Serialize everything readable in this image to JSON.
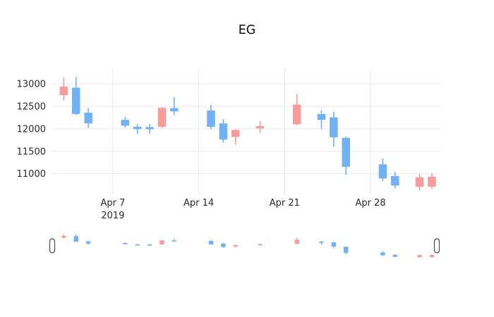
{
  "title": "EG",
  "chart_data": {
    "type": "candlestick",
    "title": "EG",
    "increasing_color": "#F89B9B",
    "decreasing_color": "#72B2F4",
    "grid_color": "#E9E9E9",
    "label_color": "#2A2A2A",
    "title_color": "#111111",
    "handle_border_color": "#4A4A4A",
    "legend": "none",
    "grid": "on",
    "x_range": [
      "2019-04-02T00:00:00Z",
      "2019-05-03T18:00:00Z"
    ],
    "y_range": [
      10525,
      13330
    ],
    "y_ticks": [
      11000,
      11500,
      12000,
      12500,
      13000
    ],
    "x_ticks": [
      {
        "date": "2019-04-07",
        "label": "Apr 7",
        "sublabel": "2019"
      },
      {
        "date": "2019-04-14",
        "label": "Apr 14",
        "sublabel": ""
      },
      {
        "date": "2019-04-21",
        "label": "Apr 21",
        "sublabel": ""
      },
      {
        "date": "2019-04-28",
        "label": "Apr 28",
        "sublabel": ""
      }
    ],
    "rangeslider": true,
    "slider_y_range": [
      10635,
      13150
    ],
    "ohlc": [
      {
        "date": "2019-04-03",
        "open": 12750,
        "high": 13140,
        "low": 12635,
        "close": 12940
      },
      {
        "date": "2019-04-04",
        "open": 12915,
        "high": 13150,
        "low": 12305,
        "close": 12330
      },
      {
        "date": "2019-04-05",
        "open": 12360,
        "high": 12460,
        "low": 12020,
        "close": 12120
      },
      {
        "date": "2019-04-08",
        "open": 12200,
        "high": 12270,
        "low": 12030,
        "close": 12070
      },
      {
        "date": "2019-04-09",
        "open": 12045,
        "high": 12110,
        "low": 11890,
        "close": 11995
      },
      {
        "date": "2019-04-10",
        "open": 12040,
        "high": 12110,
        "low": 11890,
        "close": 11990
      },
      {
        "date": "2019-04-11",
        "open": 12045,
        "high": 12480,
        "low": 12020,
        "close": 12465
      },
      {
        "date": "2019-04-12",
        "open": 12460,
        "high": 12705,
        "low": 12305,
        "close": 12390
      },
      {
        "date": "2019-04-15",
        "open": 12410,
        "high": 12530,
        "low": 11990,
        "close": 12045
      },
      {
        "date": "2019-04-16",
        "open": 12120,
        "high": 12215,
        "low": 11695,
        "close": 11760
      },
      {
        "date": "2019-04-17",
        "open": 11820,
        "high": 11990,
        "low": 11650,
        "close": 11975
      },
      {
        "date": "2019-04-19",
        "open": 12010,
        "high": 12175,
        "low": 11905,
        "close": 12060
      },
      {
        "date": "2019-04-22",
        "open": 12100,
        "high": 12775,
        "low": 12080,
        "close": 12540
      },
      {
        "date": "2019-04-24",
        "open": 12330,
        "high": 12410,
        "low": 11990,
        "close": 12200
      },
      {
        "date": "2019-04-25",
        "open": 12255,
        "high": 12385,
        "low": 11600,
        "close": 11810
      },
      {
        "date": "2019-04-26",
        "open": 11800,
        "high": 11830,
        "low": 10975,
        "close": 11155
      },
      {
        "date": "2019-04-29",
        "open": 11210,
        "high": 11340,
        "low": 10840,
        "close": 10895
      },
      {
        "date": "2019-04-30",
        "open": 10950,
        "high": 11040,
        "low": 10675,
        "close": 10740
      },
      {
        "date": "2019-05-02",
        "open": 10710,
        "high": 11000,
        "low": 10635,
        "close": 10920
      },
      {
        "date": "2019-05-03",
        "open": 10715,
        "high": 11010,
        "low": 10660,
        "close": 10935
      }
    ]
  }
}
